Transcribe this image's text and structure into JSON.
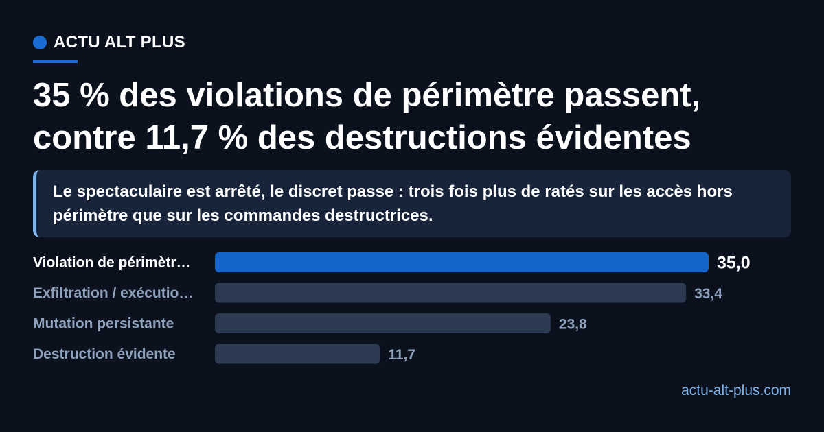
{
  "brand": {
    "name": "ACTU ALT PLUS",
    "accent_color": "#1a6ad4"
  },
  "headline": "35 % des violations de périmètre passent, contre 11,7 % des destructions évidentes",
  "subtitle": "Le spectaculaire est arrêté, le discret passe : trois fois plus de ratés sur les accès hors périmètre que sur les commandes destructrices.",
  "source": "actu-alt-plus.com",
  "chart_data": {
    "type": "bar",
    "orientation": "horizontal",
    "categories": [
      "Violation de périmètr…",
      "Exfiltration / exécutio…",
      "Mutation persistante",
      "Destruction évidente"
    ],
    "values": [
      35.0,
      33.4,
      23.8,
      11.7
    ],
    "value_labels": [
      "35,0",
      "33,4",
      "23,8",
      "11,7"
    ],
    "highlight_index": 0,
    "xlim": [
      0,
      35
    ],
    "grid": false,
    "colors": {
      "highlight_bar": "#1565c8",
      "bar": "#2c3a52",
      "highlight_label": "#ffffff",
      "label": "#8fa2bd"
    }
  }
}
